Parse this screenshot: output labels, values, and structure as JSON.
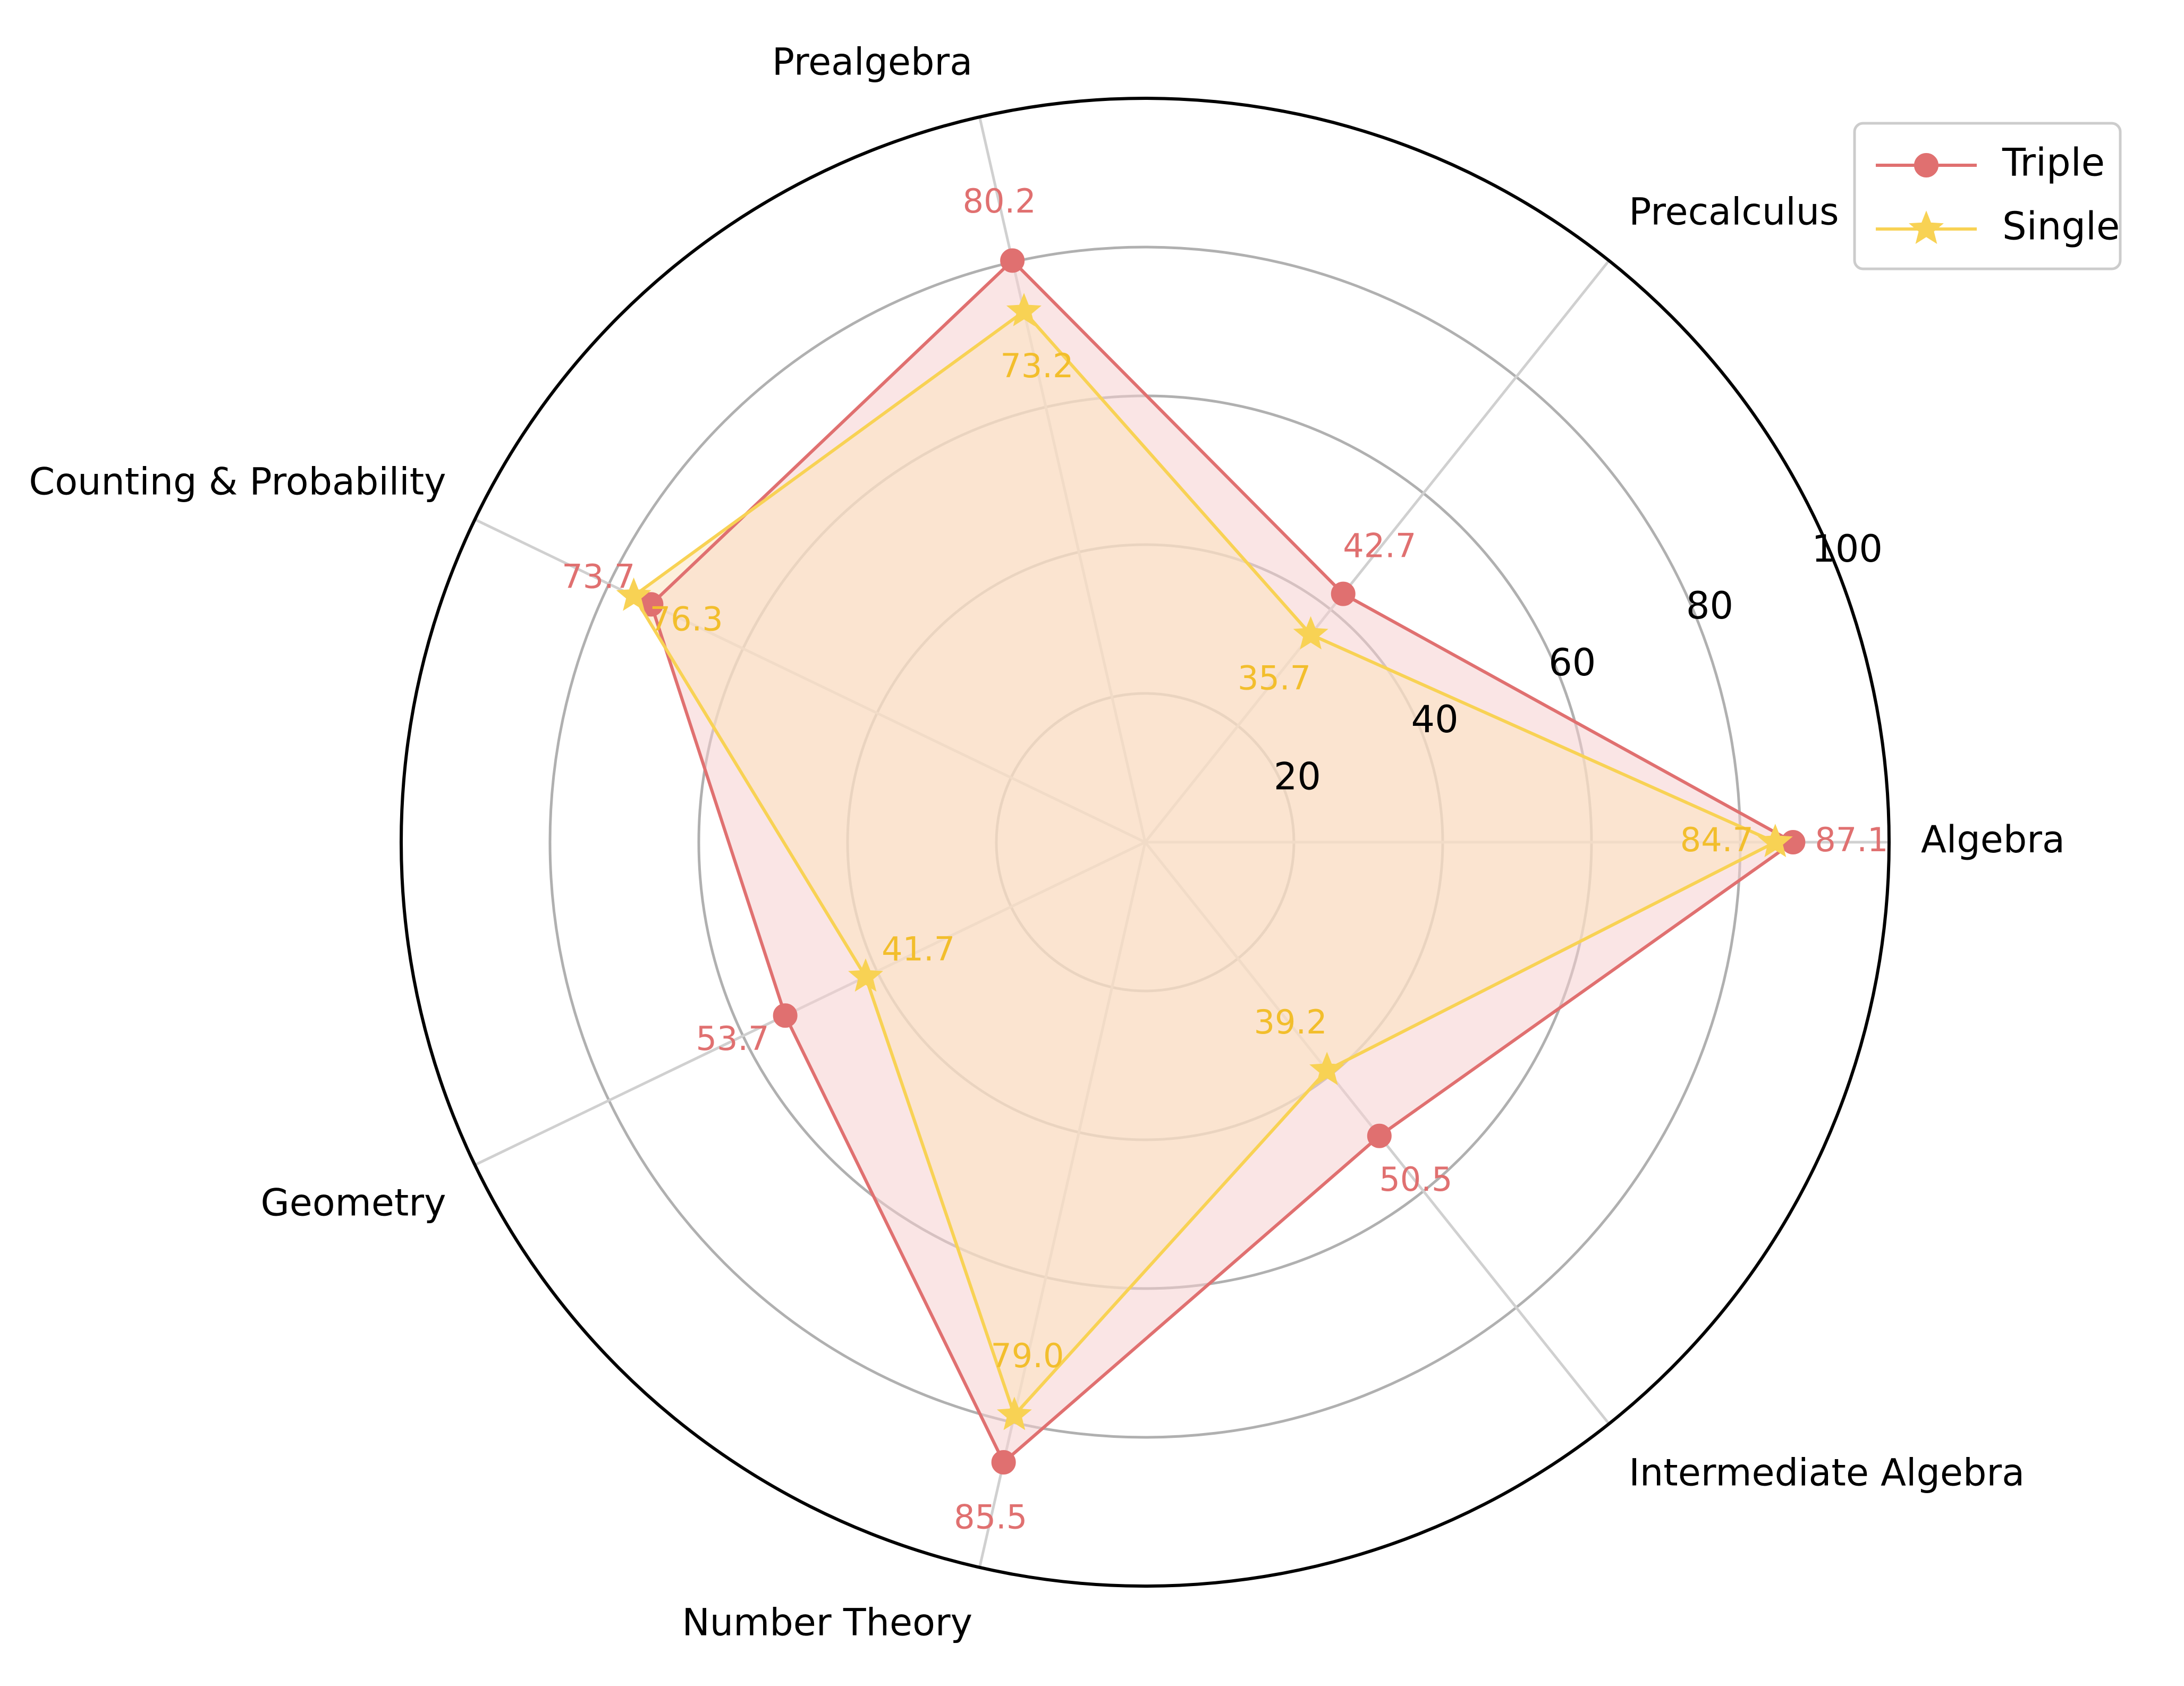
{
  "chart_data": {
    "type": "radar",
    "categories": [
      "Algebra",
      "Precalculus",
      "Prealgebra",
      "Counting & Probability",
      "Geometry",
      "Number Theory",
      "Intermediate Algebra"
    ],
    "series": [
      {
        "name": "Triple",
        "values": [
          87.1,
          42.7,
          80.2,
          73.7,
          53.7,
          85.5,
          50.5
        ],
        "color": "#E07070",
        "fill": "#F6D0D0",
        "marker": "circle"
      },
      {
        "name": "Single",
        "values": [
          84.7,
          35.7,
          73.2,
          76.3,
          41.7,
          79.0,
          39.2
        ],
        "color": "#F8D254",
        "fill": "#FBE3BF",
        "marker": "star"
      }
    ],
    "value_labels": {
      "Triple": [
        "87.1",
        "42.7",
        "80.2",
        "73.7",
        "53.7",
        "85.5",
        "50.5"
      ],
      "Single": [
        "84.7",
        "35.7",
        "73.2",
        "76.3",
        "41.7",
        "79.0",
        "39.2"
      ]
    },
    "radial_ticks": [
      "20",
      "40",
      "60",
      "80",
      "100"
    ],
    "radial_tick_values": [
      20,
      40,
      60,
      80,
      100
    ],
    "rlim": [
      0,
      100
    ],
    "grid": true,
    "legend_position": "top-right"
  }
}
